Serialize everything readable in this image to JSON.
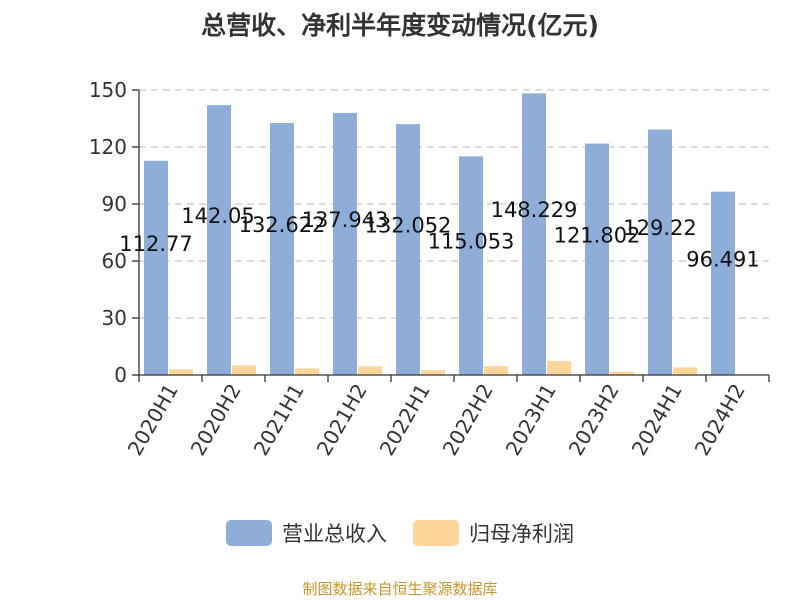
{
  "title": "总营收、净利半年度变动情况(亿元)",
  "source": "制图数据来自恒生聚源数据库",
  "colors": {
    "revenue": "#8eadd9",
    "profit": "#ffd699",
    "grid": "#c8c8c8",
    "axis": "#333333"
  },
  "legend": [
    {
      "label": "营业总收入",
      "color": "#8eadd9"
    },
    {
      "label": "归母净利润",
      "color": "#ffd699"
    }
  ],
  "chart_data": {
    "type": "bar",
    "title": "总营收、净利半年度变动情况(亿元)",
    "categories": [
      "2020H1",
      "2020H2",
      "2021H1",
      "2021H2",
      "2022H1",
      "2022H2",
      "2023H1",
      "2023H2",
      "2024H1",
      "2024H2"
    ],
    "series": [
      {
        "name": "营业总收入",
        "values": [
          112.77,
          142.05,
          132.622,
          137.943,
          132.052,
          115.053,
          148.229,
          121.802,
          129.22,
          96.491
        ],
        "labels": [
          "112.77",
          "142.05",
          "132.622",
          "137.943",
          "132.052",
          "115.053",
          "148.229",
          "121.802",
          "129.22",
          "96.491"
        ]
      },
      {
        "name": "归母净利润",
        "values": [
          3.0,
          5.0,
          3.5,
          4.6,
          2.5,
          4.7,
          7.3,
          1.8,
          4.0,
          0.2
        ]
      }
    ],
    "yticks": [
      0,
      30,
      60,
      90,
      120,
      150
    ],
    "ylim": [
      0,
      150
    ],
    "grid": true,
    "legend_position": "bottom"
  }
}
